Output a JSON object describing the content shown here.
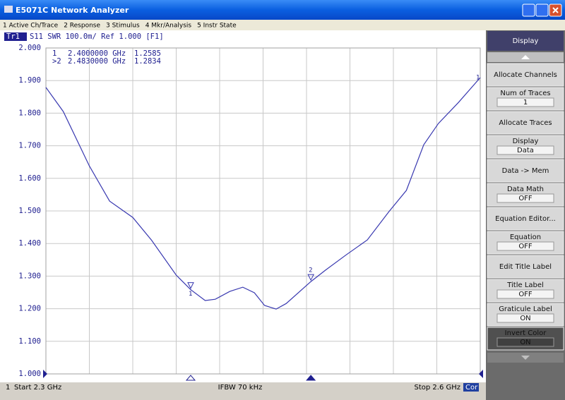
{
  "window": {
    "title": "E5071C Network Analyzer"
  },
  "menu": [
    "1 Active Ch/Trace",
    "2 Response",
    "3 Stimulus",
    "4 Mkr/Analysis",
    "5 Instr State"
  ],
  "trace_header": {
    "trace": "Tr1",
    "info": "S11  SWR 100.0m/ Ref 1.000 [F1]"
  },
  "chart_data": {
    "type": "line",
    "x": [
      2.3,
      2.312,
      2.33,
      2.344,
      2.36,
      2.373,
      2.39,
      2.4,
      2.41,
      2.417,
      2.427,
      2.436,
      2.444,
      2.451,
      2.459,
      2.466,
      2.483,
      2.493,
      2.507,
      2.522,
      2.537,
      2.549,
      2.561,
      2.571,
      2.585,
      2.6
    ],
    "values": [
      1.879,
      1.805,
      1.638,
      1.53,
      1.48,
      1.41,
      1.303,
      1.2585,
      1.225,
      1.229,
      1.253,
      1.266,
      1.249,
      1.21,
      1.199,
      1.216,
      1.2834,
      1.318,
      1.364,
      1.411,
      1.498,
      1.563,
      1.703,
      1.768,
      1.833,
      1.909
    ],
    "color": "#3838b0",
    "xlim": [
      2.3,
      2.6
    ],
    "ylim": [
      1,
      2
    ],
    "yticks": [
      {
        "value": 1,
        "label": "1.000"
      },
      {
        "value": 1.1,
        "label": "1.100"
      },
      {
        "value": 1.2,
        "label": "1.200"
      },
      {
        "value": 1.3,
        "label": "1.300"
      },
      {
        "value": 1.4,
        "label": "1.400"
      },
      {
        "value": 1.5,
        "label": "1.500"
      },
      {
        "value": 1.6,
        "label": "1.600"
      },
      {
        "value": 1.7,
        "label": "1.700"
      },
      {
        "value": 1.8,
        "label": "1.800"
      },
      {
        "value": 1.9,
        "label": "1.900"
      },
      {
        "value": 2,
        "label": "2.000"
      }
    ],
    "grid": true,
    "trace_end_label": "1",
    "markers": [
      {
        "number": "1",
        "list_label": "1",
        "x": 2.4,
        "x_label": "2.4000000 GHz",
        "y": 1.2585
      },
      {
        "number": "2",
        "list_label": ">2",
        "x": 2.483,
        "x_label": "2.4830000 GHz",
        "y": 1.2834
      }
    ]
  },
  "status": {
    "channel": "1",
    "start": "Start 2.3 GHz",
    "ifbw": "IFBW 70 kHz",
    "stop": "Stop 2.6 GHz",
    "cor": "Cor"
  },
  "softkeys": {
    "title": "Display",
    "keys": [
      {
        "label": "Allocate Channels"
      },
      {
        "label": "Num of Traces",
        "value": "1"
      },
      {
        "label": "Allocate Traces"
      },
      {
        "label": "Display",
        "value": "Data"
      },
      {
        "label": "Data -> Mem"
      },
      {
        "label": "Data Math",
        "value": "OFF"
      },
      {
        "label": "Equation Editor..."
      },
      {
        "label": "Equation",
        "value": "OFF"
      },
      {
        "label": "Edit Title Label"
      },
      {
        "label": "Title Label",
        "value": "OFF"
      },
      {
        "label": "Graticule Label",
        "value": "ON"
      },
      {
        "label": "Invert Color",
        "value": "ON"
      }
    ]
  }
}
